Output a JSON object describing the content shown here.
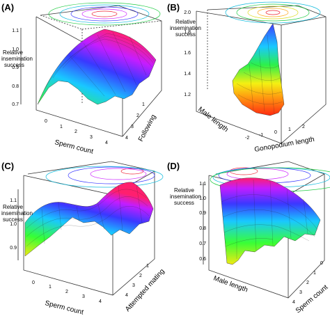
{
  "figure": {
    "panels": [
      "(A)",
      "(B)",
      "(C)",
      "(D)"
    ]
  },
  "chart_data": [
    {
      "type": "surface",
      "panel": "(A)",
      "xlabel": "Sperm count",
      "ylabel": "Following",
      "zlabel": "Relative insemination success",
      "x_ticks": [
        "0",
        "1",
        "2",
        "3",
        "4"
      ],
      "y_ticks": [
        "1",
        "2",
        "3",
        "4"
      ],
      "z_ticks": [
        "0.7",
        "0.8",
        "0.9",
        "1.0",
        "1.1"
      ],
      "xlim": [
        0,
        4
      ],
      "ylim": [
        1,
        4
      ],
      "zlim": [
        0.7,
        1.15
      ],
      "surface_peak": {
        "x": 2.5,
        "y": 1,
        "z": 1.1
      },
      "colormap": "rainbow",
      "contours_on_top": true
    },
    {
      "type": "surface",
      "panel": "(B)",
      "xlabel": "Gonopodium length",
      "ylabel": "Male length",
      "zlabel": "Relative insemination success",
      "x_ticks": [
        "-2",
        "-1",
        "0",
        "1",
        "2"
      ],
      "y_ticks": [],
      "z_ticks": [
        "1.2",
        "1.4",
        "1.6",
        "1.8",
        "2.0"
      ],
      "xlim": [
        -2,
        2
      ],
      "zlim": [
        1.1,
        2.0
      ],
      "surface_min": {
        "x": 0,
        "z": 1.15
      },
      "colormap": "rainbow",
      "contours_on_top": true
    },
    {
      "type": "surface",
      "panel": "(C)",
      "xlabel": "Sperm count",
      "ylabel": "Attempted mating",
      "zlabel": "Relative insemination success",
      "x_ticks": [
        "0",
        "1",
        "2",
        "3",
        "4"
      ],
      "y_ticks": [
        "1",
        "2",
        "3",
        "4"
      ],
      "z_ticks": [
        "0.9",
        "1.0",
        "1.1"
      ],
      "xlim": [
        0,
        4
      ],
      "ylim": [
        1,
        4
      ],
      "zlim": [
        0.82,
        1.15
      ],
      "surface_peak": {
        "x": 3.5,
        "y": 1,
        "z": 1.12
      },
      "colormap": "rainbow",
      "contours_on_top": true
    },
    {
      "type": "surface",
      "panel": "(D)",
      "xlabel": "Male length",
      "ylabel": "Sperm count",
      "zlabel": "Relative insemination success",
      "x_ticks": [],
      "y_ticks": [
        "0",
        "1",
        "2",
        "3",
        "4"
      ],
      "z_ticks": [
        "0.6",
        "0.7",
        "0.8",
        "0.9",
        "1.0",
        "1.1"
      ],
      "ylim": [
        0,
        4
      ],
      "zlim": [
        0.6,
        1.12
      ],
      "surface_peak": {
        "y": 0,
        "z": 1.1
      },
      "colormap": "rainbow",
      "contours_on_top": true
    }
  ]
}
